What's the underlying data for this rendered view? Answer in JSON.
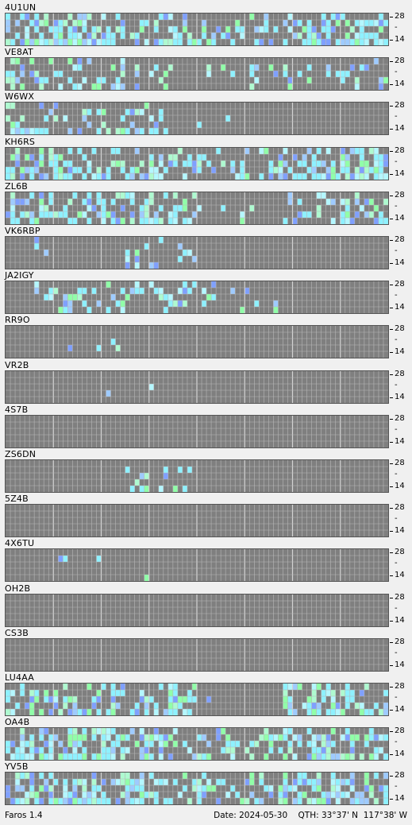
{
  "app_version": "Faros 1.4",
  "footer": {
    "date_label": "Date:",
    "date": "2024-05-30",
    "qth_label": "QTH:",
    "lat": "33°37' N",
    "lon": "117°38' W"
  },
  "axis": {
    "top_label": "28",
    "bottom_label": "14",
    "mid_mark": "-"
  },
  "colors": {
    "grid_bg": "#7f7f7f",
    "grid_line": "#b8b8b8",
    "major_line": "#d4d4d4",
    "cyan": "#8ef1ff",
    "light_cyan": "#b4f7ff",
    "blue": "#7fa0ff",
    "green": "#90ffa8",
    "mint": "#aefad0",
    "light_blue": "#9ecbff"
  },
  "beacons": [
    {
      "call": "4U1UN",
      "activity": "heavy-full"
    },
    {
      "call": "VE8AT",
      "activity": "medium-full"
    },
    {
      "call": "W6WX",
      "activity": "medium-left"
    },
    {
      "call": "KH6RS",
      "activity": "heavy-full"
    },
    {
      "call": "ZL6B",
      "activity": "heavy-left-right"
    },
    {
      "call": "VK6RBP",
      "activity": "light-middle"
    },
    {
      "call": "JA2IGY",
      "activity": "medium-middle"
    },
    {
      "call": "RR9O",
      "activity": "trace"
    },
    {
      "call": "VR2B",
      "activity": "trace"
    },
    {
      "call": "4S7B",
      "activity": "none"
    },
    {
      "call": "ZS6DN",
      "activity": "light-middle"
    },
    {
      "call": "5Z4B",
      "activity": "none"
    },
    {
      "call": "4X6TU",
      "activity": "trace"
    },
    {
      "call": "OH2B",
      "activity": "none"
    },
    {
      "call": "CS3B",
      "activity": "none"
    },
    {
      "call": "LU4AA",
      "activity": "heavy-left-right"
    },
    {
      "call": "OA4B",
      "activity": "heavy-full"
    },
    {
      "call": "YV5B",
      "activity": "heavy-full"
    }
  ]
}
